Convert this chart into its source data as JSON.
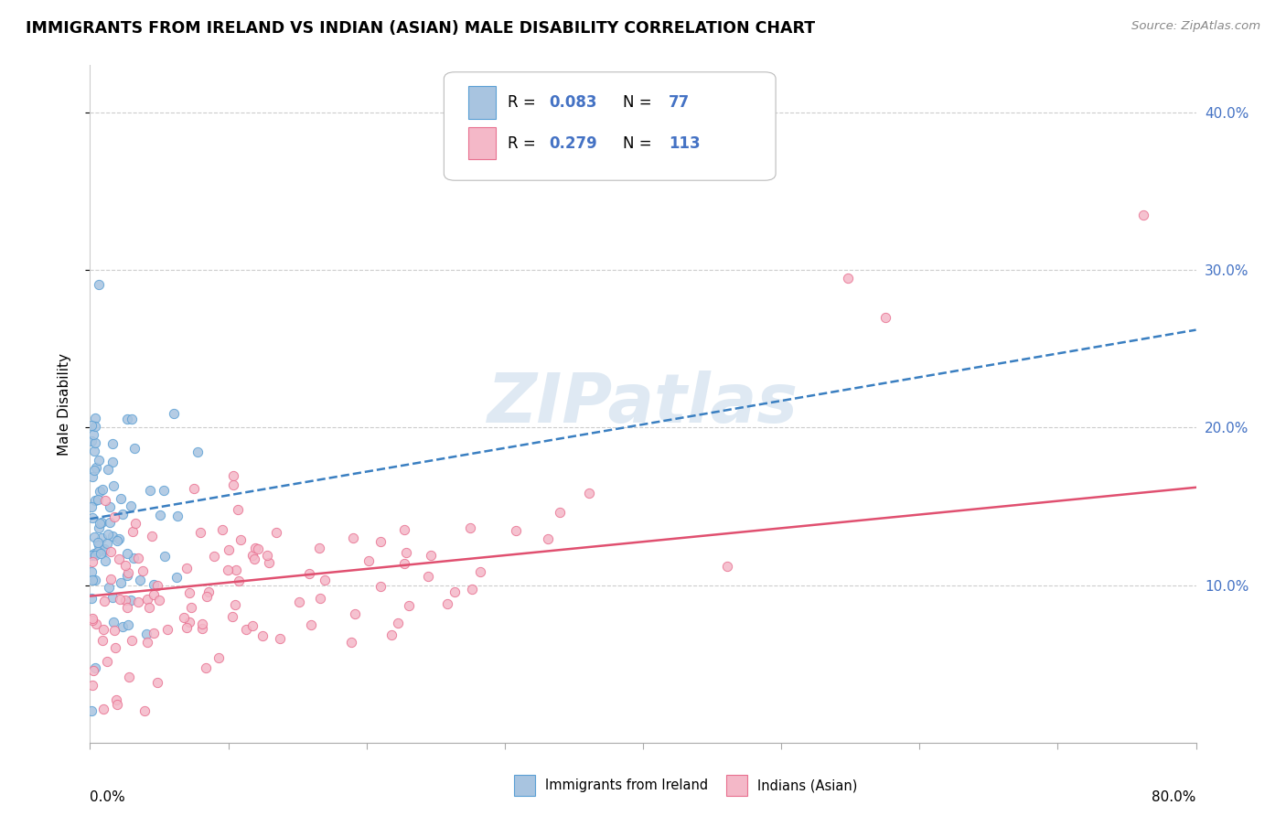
{
  "title": "IMMIGRANTS FROM IRELAND VS INDIAN (ASIAN) MALE DISABILITY CORRELATION CHART",
  "source": "Source: ZipAtlas.com",
  "ylabel": "Male Disability",
  "yticks": [
    0.1,
    0.2,
    0.3,
    0.4
  ],
  "ytick_labels": [
    "10.0%",
    "20.0%",
    "30.0%",
    "40.0%"
  ],
  "xlim": [
    0.0,
    0.8
  ],
  "ylim": [
    0.0,
    0.43
  ],
  "series": [
    {
      "label": "Immigrants from Ireland",
      "R": 0.083,
      "N": 77,
      "color": "#a8c4e0",
      "edge_color": "#5a9fd4",
      "line_color": "#3a7fc1",
      "line_style": "--",
      "trend_y0": 0.142,
      "trend_y1": 0.262
    },
    {
      "label": "Indians (Asian)",
      "R": 0.279,
      "N": 113,
      "color": "#f4b8c8",
      "edge_color": "#e87090",
      "line_color": "#e05070",
      "line_style": "-",
      "trend_y0": 0.093,
      "trend_y1": 0.162
    }
  ],
  "watermark": "ZIPatlas",
  "legend_color": "#4472c4"
}
